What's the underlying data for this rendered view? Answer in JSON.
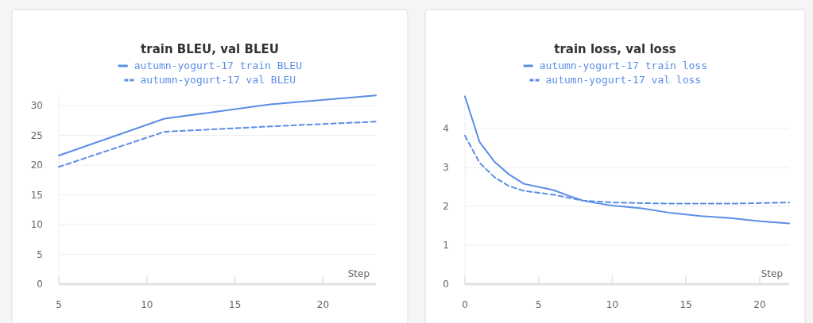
{
  "chart_data": [
    {
      "type": "line",
      "title": "train BLEU, val BLEU",
      "xlabel": "Step",
      "legend": "top",
      "grid": "y",
      "marker": "none",
      "xlim": [
        5,
        23
      ],
      "xticks": [
        5,
        10,
        15,
        20
      ],
      "ylim": [
        0,
        32
      ],
      "yticks": [
        0,
        5,
        10,
        15,
        20,
        25,
        30
      ],
      "series": [
        {
          "name": "autumn-yogurt-17 train BLEU",
          "color": "#5b8ee6",
          "line_style": "solid",
          "x": [
            5,
            11,
            17,
            23
          ],
          "values": [
            21.6,
            27.8,
            30.2,
            31.7
          ]
        },
        {
          "name": "autumn-yogurt-17 val BLEU",
          "color": "#5b8ee6",
          "line_style": "dashed",
          "x": [
            5,
            11,
            17,
            23
          ],
          "values": [
            19.7,
            25.6,
            26.5,
            27.3
          ]
        }
      ]
    },
    {
      "type": "line",
      "title": "train loss, val loss",
      "xlabel": "Step",
      "legend": "top",
      "grid": "y",
      "marker": "none",
      "xlim": [
        0,
        22
      ],
      "xticks": [
        0,
        5,
        10,
        15,
        20
      ],
      "ylim": [
        0,
        4.9
      ],
      "yticks": [
        0,
        1,
        2,
        3,
        4
      ],
      "series": [
        {
          "name": "autumn-yogurt-17 train loss",
          "color": "#5b8ee6",
          "line_style": "solid",
          "x": [
            0,
            1,
            2,
            3,
            4,
            5,
            6,
            7,
            8,
            9,
            10,
            12,
            14,
            16,
            18,
            20,
            22
          ],
          "values": [
            4.83,
            3.65,
            3.15,
            2.82,
            2.58,
            2.5,
            2.42,
            2.28,
            2.15,
            2.08,
            2.02,
            1.95,
            1.83,
            1.75,
            1.7,
            1.62,
            1.56
          ]
        },
        {
          "name": "autumn-yogurt-17 val loss",
          "color": "#5b8ee6",
          "line_style": "dashed",
          "x": [
            0,
            1,
            2,
            3,
            4,
            6,
            8,
            10,
            14,
            18,
            22
          ],
          "values": [
            3.82,
            3.12,
            2.75,
            2.52,
            2.4,
            2.3,
            2.15,
            2.1,
            2.07,
            2.07,
            2.1
          ]
        }
      ]
    }
  ]
}
